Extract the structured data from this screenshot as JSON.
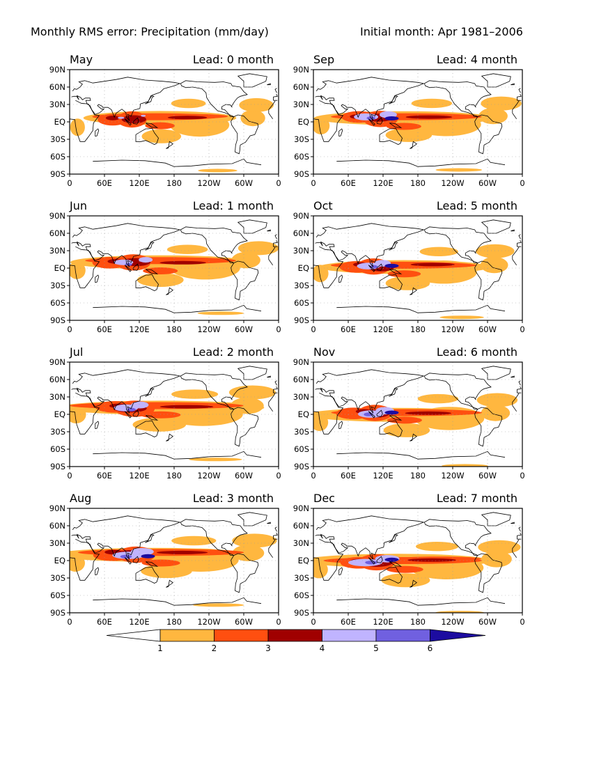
{
  "header": {
    "title": "Monthly RMS error: Precipitation (mm/day)",
    "initial": "Initial month: Apr 1981–2006"
  },
  "axes": {
    "lat_ticks": [
      "90N",
      "60N",
      "30N",
      "EQ",
      "30S",
      "60S",
      "90S"
    ],
    "lon_ticks": [
      "0",
      "60E",
      "120E",
      "180",
      "120W",
      "60W",
      "0"
    ]
  },
  "panels": [
    {
      "month": "May",
      "lead": "Lead: 0 month"
    },
    {
      "month": "Sep",
      "lead": "Lead: 4 month"
    },
    {
      "month": "Jun",
      "lead": "Lead: 1 month"
    },
    {
      "month": "Oct",
      "lead": "Lead: 5 month"
    },
    {
      "month": "Jul",
      "lead": "Lead: 2 month"
    },
    {
      "month": "Nov",
      "lead": "Lead: 6 month"
    },
    {
      "month": "Aug",
      "lead": "Lead: 3 month"
    },
    {
      "month": "Dec",
      "lead": "Lead: 7 month"
    }
  ],
  "colorbar": {
    "labels": [
      "1",
      "2",
      "3",
      "4",
      "5",
      "6"
    ],
    "colors": [
      "#ffffff",
      "#ffb73f",
      "#ff4f10",
      "#a00000",
      "#c0b4ff",
      "#7060e0",
      "#1c0ca0"
    ]
  }
}
